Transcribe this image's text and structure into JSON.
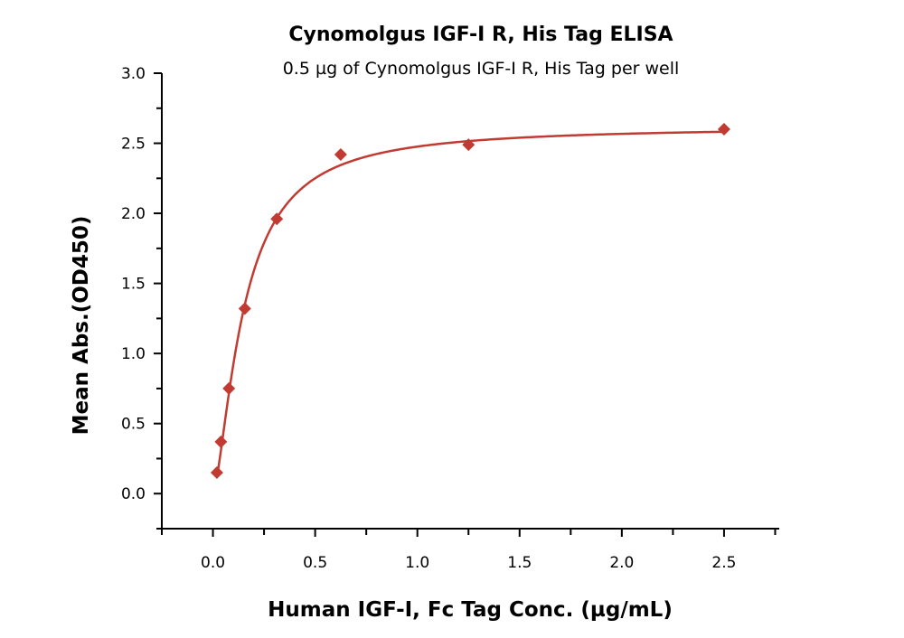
{
  "chart_data": {
    "type": "scatter",
    "title": "Cynomolgus IGF-I R, His Tag ELISA",
    "subtitle": "0.5 µg of Cynomolgus IGF-I R, His Tag per well",
    "xlabel": "Human IGF-I, Fc Tag Conc. (µg/mL)",
    "ylabel": "Mean Abs.(OD450)",
    "xlim": [
      -0.25,
      2.77
    ],
    "ylim": [
      -0.25,
      3.0
    ],
    "xticks": [
      "0.0",
      "0.5",
      "1.0",
      "1.5",
      "2.0",
      "2.5"
    ],
    "yticks": [
      "0.0",
      "0.5",
      "1.0",
      "1.5",
      "2.0",
      "2.5",
      "3.0"
    ],
    "grid": false,
    "fit_curve": true,
    "color": "#c23b32",
    "marker": "diamond",
    "x": [
      0.0195,
      0.039,
      0.078,
      0.156,
      0.3125,
      0.625,
      1.25,
      2.5
    ],
    "y": [
      0.15,
      0.37,
      0.75,
      1.32,
      1.96,
      2.42,
      2.49,
      2.6
    ]
  }
}
